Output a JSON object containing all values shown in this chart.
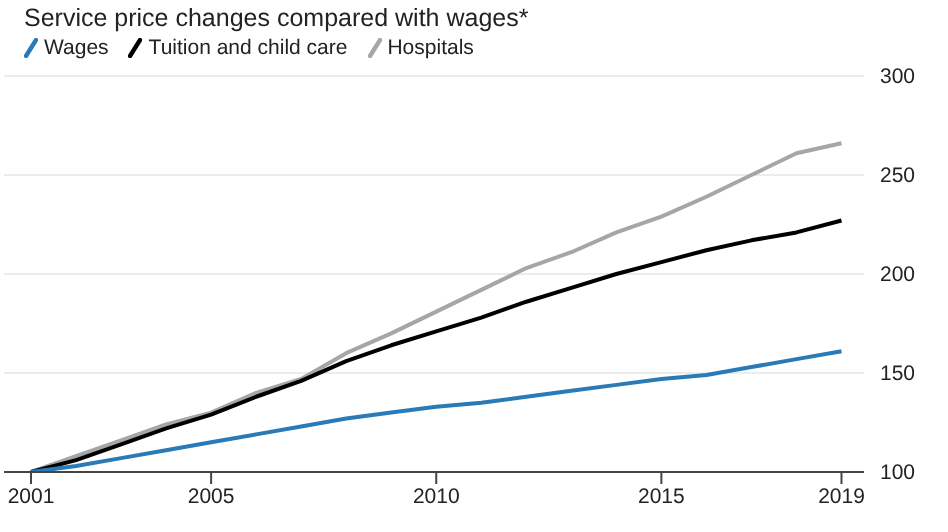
{
  "chart_data": {
    "type": "line",
    "title": "Service price changes compared with wages*",
    "x": [
      2001,
      2002,
      2003,
      2004,
      2005,
      2006,
      2007,
      2008,
      2009,
      2010,
      2011,
      2012,
      2013,
      2014,
      2015,
      2016,
      2017,
      2018,
      2019
    ],
    "series": [
      {
        "name": "Wages",
        "color": "#2a7ab8",
        "values": [
          100,
          103,
          107,
          111,
          115,
          119,
          123,
          127,
          130,
          133,
          135,
          138,
          141,
          144,
          147,
          149,
          153,
          157,
          161
        ]
      },
      {
        "name": "Tuition and child care",
        "color": "#000000",
        "values": [
          100,
          106,
          114,
          122,
          129,
          138,
          146,
          156,
          164,
          171,
          178,
          186,
          193,
          200,
          206,
          212,
          217,
          221,
          227
        ]
      },
      {
        "name": "Hospitals",
        "color": "#a6a6a6",
        "values": [
          100,
          108,
          116,
          124,
          130,
          140,
          147,
          160,
          170,
          181,
          192,
          203,
          211,
          221,
          229,
          239,
          250,
          261,
          266
        ]
      }
    ],
    "xlim": [
      2000.4,
      2019.5
    ],
    "xticks": [
      2001,
      2005,
      2010,
      2015,
      2019
    ],
    "ylim": [
      100,
      300
    ],
    "yticks": [
      100,
      150,
      200,
      250,
      300
    ],
    "grid": "y",
    "legend": "top left",
    "marker": "none",
    "line_style": "solid"
  }
}
